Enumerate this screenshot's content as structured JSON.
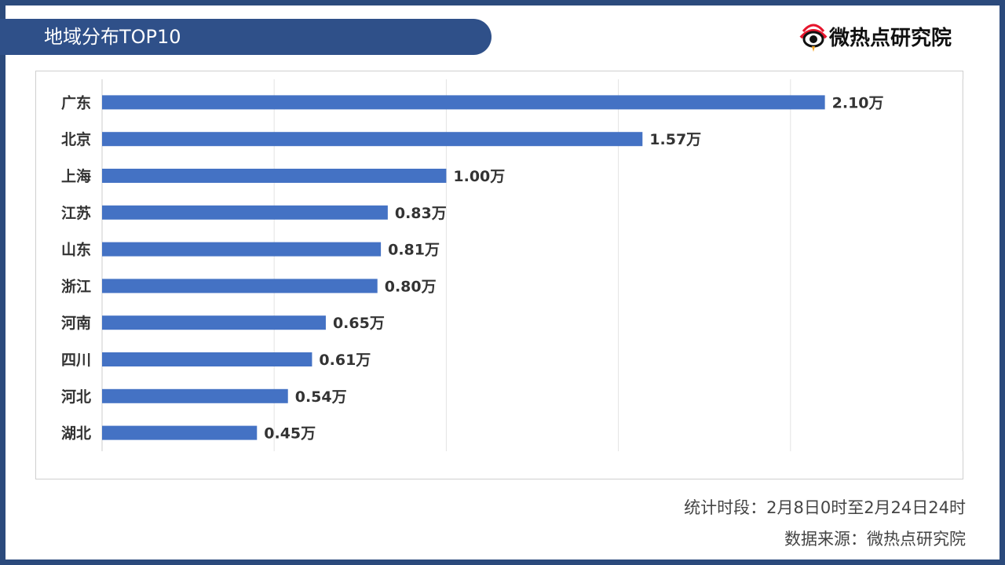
{
  "header": {
    "title": "地域分布TOP10",
    "logo_text": "微热点研究院"
  },
  "footer": {
    "period": "统计时段：2月8日0时至2月24日24时",
    "source": "数据来源：微热点研究院"
  },
  "colors": {
    "frame": "#2b4a7c",
    "title_bar": "#2f5089",
    "bar": "#4472c4",
    "logo_red": "#e6162d"
  },
  "chart_data": {
    "type": "bar",
    "orientation": "horizontal",
    "categories": [
      "广东",
      "北京",
      "上海",
      "江苏",
      "山东",
      "浙江",
      "河南",
      "四川",
      "河北",
      "湖北"
    ],
    "values": [
      2.1,
      1.57,
      1.0,
      0.83,
      0.81,
      0.8,
      0.65,
      0.61,
      0.54,
      0.45
    ],
    "value_labels": [
      "2.10万",
      "1.57万",
      "1.00万",
      "0.83万",
      "0.81万",
      "0.80万",
      "0.65万",
      "0.61万",
      "0.54万",
      "0.45万"
    ],
    "xlim": [
      0,
      2.5
    ],
    "grid": true,
    "title": "地域分布TOP10",
    "xlabel": "",
    "ylabel": ""
  }
}
